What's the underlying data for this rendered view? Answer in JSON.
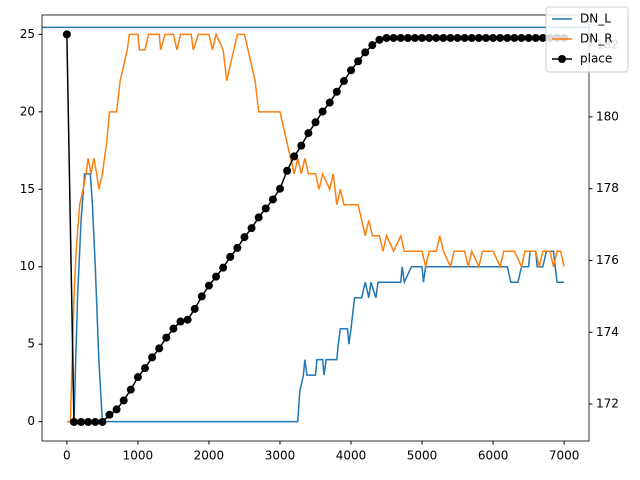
{
  "chart_data": {
    "type": "line",
    "xlim": [
      -350,
      7350
    ],
    "xticks": [
      0,
      1000,
      2000,
      3000,
      4000,
      5000,
      6000,
      7000
    ],
    "ylim": [
      -1.25,
      26.25
    ],
    "yticks": [
      0,
      5,
      10,
      15,
      20,
      25
    ],
    "y2lim": [
      170.97,
      182.84
    ],
    "y2ticks": [
      172,
      174,
      176,
      178,
      180,
      182
    ],
    "hline": 25.45,
    "hline_color": "#1f77b4",
    "legend": "upper right",
    "series": [
      {
        "name": "DN_L",
        "color": "#1f77b4",
        "x": [
          0,
          100,
          150,
          200,
          250,
          330,
          360,
          400,
          450,
          500,
          3250,
          3280,
          3330,
          3350,
          3380,
          3500,
          3520,
          3600,
          3620,
          3650,
          3800,
          3820,
          3850,
          3950,
          3970,
          4000,
          4050,
          4150,
          4200,
          4250,
          4280,
          4350,
          4380,
          4450,
          4500,
          4700,
          4720,
          4750,
          4850,
          5000,
          5020,
          5050,
          6000,
          6200,
          6250,
          6350,
          6400,
          6500,
          6520,
          6600,
          6620,
          6700,
          6750,
          6850,
          6900,
          7000
        ],
        "values": [
          0,
          0,
          8,
          13,
          16,
          16,
          14,
          10,
          4,
          0,
          0,
          2,
          3,
          4,
          3,
          3,
          4,
          4,
          3,
          4,
          4,
          5,
          6,
          6,
          5,
          6,
          8,
          8,
          9,
          8,
          9,
          8,
          9,
          9,
          9,
          9,
          10,
          9,
          10,
          10,
          9,
          10,
          10,
          10,
          9,
          9,
          10,
          10,
          11,
          11,
          10,
          10,
          11,
          11,
          9,
          9
        ]
      },
      {
        "name": "DN_R",
        "color": "#ff7f0e",
        "x": [
          0,
          50,
          100,
          130,
          180,
          230,
          270,
          300,
          340,
          380,
          420,
          450,
          500,
          560,
          600,
          700,
          750,
          800,
          850,
          880,
          1000,
          1020,
          1100,
          1150,
          1300,
          1320,
          1380,
          1500,
          1550,
          1600,
          1750,
          1780,
          1850,
          2000,
          2050,
          2100,
          2200,
          2250,
          2300,
          2350,
          2400,
          2500,
          2550,
          2600,
          2650,
          2700,
          3000,
          3050,
          3100,
          3150,
          3200,
          3250,
          3300,
          3350,
          3400,
          3500,
          3550,
          3600,
          3700,
          3750,
          3800,
          3850,
          3900,
          4100,
          4150,
          4200,
          4250,
          4300,
          4400,
          4450,
          4500,
          4600,
          4700,
          4750,
          4800,
          4900,
          5000,
          5050,
          5100,
          5200,
          5250,
          5300,
          5400,
          5450,
          5600,
          5650,
          5700,
          5800,
          5850,
          6000,
          6100,
          6150,
          6300,
          6400,
          6450,
          6600,
          6650,
          6700,
          6800,
          6850,
          6900,
          6950,
          7000
        ],
        "values": [
          0,
          0,
          8,
          11,
          14,
          15,
          16,
          17,
          16,
          17,
          16,
          15,
          16,
          18,
          20,
          20,
          22,
          23,
          24,
          25,
          25,
          24,
          24,
          25,
          25,
          24,
          25,
          25,
          24,
          25,
          25,
          24,
          25,
          25,
          24,
          25,
          24,
          22,
          23,
          24,
          25,
          25,
          24,
          23,
          22,
          20,
          20,
          19,
          18,
          17,
          16,
          17,
          16,
          17,
          16,
          16,
          15,
          16,
          15,
          16,
          14,
          15,
          14,
          14,
          13,
          12,
          13,
          12,
          12,
          11,
          12,
          11,
          12,
          11,
          11,
          11,
          11,
          10,
          11,
          11,
          12,
          11,
          10,
          11,
          11,
          10,
          11,
          10,
          11,
          11,
          10,
          11,
          11,
          10,
          11,
          11,
          10,
          11,
          11,
          10,
          11,
          11,
          10
        ]
      },
      {
        "name": "place",
        "color": "#000000",
        "axis": "y2",
        "marker": "o",
        "x": [
          0,
          100,
          200,
          300,
          400,
          500,
          600,
          700,
          800,
          900,
          1000,
          1100,
          1200,
          1300,
          1400,
          1500,
          1600,
          1700,
          1800,
          1900,
          2000,
          2100,
          2200,
          2300,
          2400,
          2500,
          2600,
          2700,
          2800,
          2900,
          3000,
          3100,
          3200,
          3300,
          3400,
          3500,
          3600,
          3700,
          3800,
          3900,
          4000,
          4100,
          4200,
          4300,
          4400,
          4500,
          4600,
          4700,
          4800,
          4900,
          5000,
          5100,
          5200,
          5300,
          5400,
          5500,
          5600,
          5700,
          5800,
          5900,
          6000,
          6100,
          6200,
          6300,
          6400,
          6500,
          6600,
          6700,
          6800,
          6900,
          7000
        ],
        "values": [
          182.3,
          171.5,
          171.5,
          171.5,
          171.5,
          171.5,
          171.7,
          171.85,
          172.1,
          172.4,
          172.75,
          173.0,
          173.3,
          173.55,
          173.85,
          174.1,
          174.3,
          174.35,
          174.65,
          175.0,
          175.3,
          175.55,
          175.8,
          176.1,
          176.35,
          176.65,
          176.9,
          177.2,
          177.45,
          177.7,
          178.0,
          178.5,
          178.9,
          179.2,
          179.55,
          179.85,
          180.15,
          180.4,
          180.7,
          181.0,
          181.3,
          181.55,
          181.8,
          182.0,
          182.15,
          182.2,
          182.2,
          182.2,
          182.2,
          182.2,
          182.2,
          182.2,
          182.2,
          182.2,
          182.2,
          182.2,
          182.2,
          182.2,
          182.2,
          182.2,
          182.2,
          182.2,
          182.2,
          182.2,
          182.2,
          182.2,
          182.2,
          182.2,
          182.2,
          182.2,
          182.2
        ]
      }
    ]
  }
}
